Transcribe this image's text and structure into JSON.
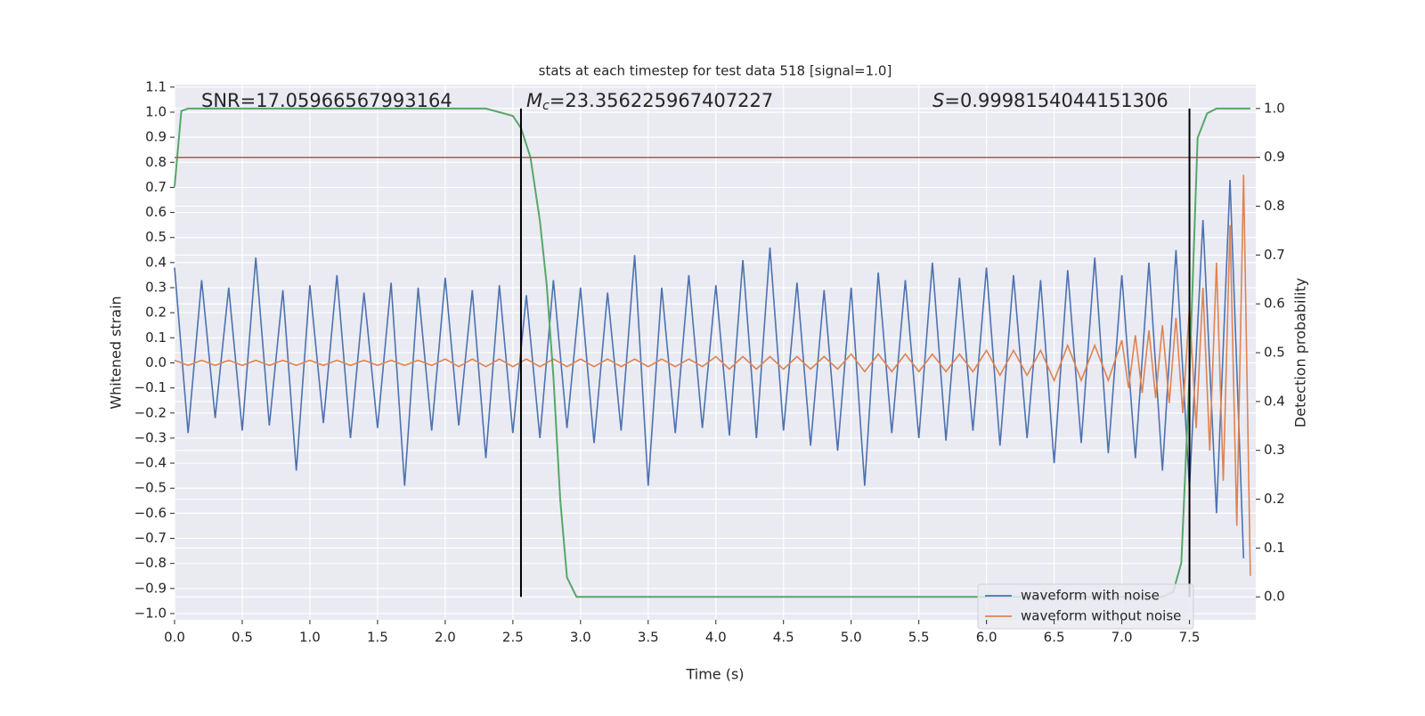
{
  "chart_data": {
    "type": "line",
    "title": "stats at each timestep for test data 518 [signal=1.0]",
    "x_label": "Time (s)",
    "y_label": "Whitened strain",
    "y2_label": "Detection probability",
    "annotations": [
      {
        "text": "SNR=17.05966567993164"
      },
      {
        "symbol": "M",
        "subscript": "c",
        "text": "=23.356225967407227"
      },
      {
        "symbol": "S",
        "text": "=0.9998154044151306"
      }
    ],
    "xlim": [
      0,
      7.99
    ],
    "ylim": [
      -1.025,
      1.11
    ],
    "y2lim": [
      -0.047,
      1.049
    ],
    "xticks": [
      {
        "value": 0,
        "label": "0.0"
      },
      0.5,
      {
        "value": 1,
        "label": "1.0"
      },
      1.5,
      {
        "value": 2,
        "label": "2.0"
      },
      2.5,
      {
        "value": 3,
        "label": "3.0"
      },
      3.5,
      {
        "value": 4,
        "label": "4.0"
      },
      4.5,
      {
        "value": 5,
        "label": "5.0"
      },
      5.5,
      {
        "value": 6,
        "label": "6.0"
      },
      6.5,
      {
        "value": 7,
        "label": "7.0"
      },
      7.5
    ],
    "yticks": [
      {
        "value": -1,
        "label": "−1.0"
      },
      {
        "value": -0.9,
        "label": "−0.9"
      },
      {
        "value": -0.8,
        "label": "−0.8"
      },
      {
        "value": -0.7,
        "label": "−0.7"
      },
      {
        "value": -0.6,
        "label": "−0.6"
      },
      {
        "value": -0.5,
        "label": "−0.5"
      },
      {
        "value": -0.4,
        "label": "−0.4"
      },
      {
        "value": -0.3,
        "label": "−0.3"
      },
      {
        "value": -0.2,
        "label": "−0.2"
      },
      {
        "value": -0.1,
        "label": "−0.1"
      },
      {
        "value": 0,
        "label": "0.0"
      },
      0.1,
      0.2,
      0.3,
      0.4,
      0.5,
      0.6,
      0.7,
      0.8,
      0.9,
      {
        "value": 1,
        "label": "1.0"
      },
      1.1
    ],
    "y2ticks": [
      {
        "value": 0,
        "label": "0.0"
      },
      0.1,
      0.2,
      0.3,
      0.4,
      0.5,
      0.6,
      0.7,
      0.8,
      0.9,
      {
        "value": 1,
        "label": "1.0"
      }
    ],
    "grid": true,
    "series": [
      {
        "name": "waveform with noise",
        "color": "#4c72b0",
        "x": [
          0,
          0.1,
          0.2,
          0.3,
          0.4,
          0.5,
          0.6,
          0.7,
          0.8,
          0.9,
          1,
          1.1,
          1.2,
          1.3,
          1.4,
          1.5,
          1.6,
          1.7,
          1.8,
          1.9,
          2,
          2.1,
          2.2,
          2.3,
          2.4,
          2.5,
          2.6,
          2.7,
          2.8,
          2.9,
          3,
          3.1,
          3.2,
          3.3,
          3.4,
          3.5,
          3.6,
          3.7,
          3.8,
          3.9,
          4,
          4.1,
          4.2,
          4.3,
          4.4,
          4.5,
          4.6,
          4.7,
          4.8,
          4.9,
          5,
          5.1,
          5.2,
          5.3,
          5.4,
          5.5,
          5.6,
          5.7,
          5.8,
          5.9,
          6,
          6.1,
          6.2,
          6.3,
          6.4,
          6.5,
          6.6,
          6.7,
          6.8,
          6.9,
          7,
          7.1,
          7.2,
          7.3,
          7.4,
          7.5,
          7.6,
          7.7,
          7.8,
          7.9
        ],
        "values": [
          0.38,
          -0.28,
          0.33,
          -0.22,
          0.3,
          -0.27,
          0.42,
          -0.25,
          0.29,
          -0.43,
          0.31,
          -0.24,
          0.35,
          -0.3,
          0.28,
          -0.26,
          0.32,
          -0.49,
          0.3,
          -0.27,
          0.34,
          -0.25,
          0.29,
          -0.38,
          0.31,
          -0.28,
          0.27,
          -0.3,
          0.33,
          -0.26,
          0.3,
          -0.32,
          0.28,
          -0.27,
          0.43,
          -0.49,
          0.3,
          -0.28,
          0.35,
          -0.26,
          0.31,
          -0.29,
          0.41,
          -0.3,
          0.46,
          -0.27,
          0.32,
          -0.33,
          0.29,
          -0.35,
          0.3,
          -0.49,
          0.36,
          -0.28,
          0.33,
          -0.3,
          0.4,
          -0.31,
          0.34,
          -0.27,
          0.38,
          -0.33,
          0.35,
          -0.3,
          0.33,
          -0.4,
          0.37,
          -0.32,
          0.42,
          -0.36,
          0.35,
          -0.38,
          0.4,
          -0.43,
          0.45,
          -0.5,
          0.57,
          -0.6,
          0.73,
          -0.78
        ]
      },
      {
        "name": "waveform without noise",
        "color": "#dd8452",
        "x": [
          0,
          0.1,
          0.2,
          0.3,
          0.4,
          0.5,
          0.6,
          0.7,
          0.8,
          0.9,
          1,
          1.1,
          1.2,
          1.3,
          1.4,
          1.5,
          1.6,
          1.7,
          1.8,
          1.9,
          2,
          2.1,
          2.2,
          2.3,
          2.4,
          2.5,
          2.6,
          2.7,
          2.8,
          2.9,
          3,
          3.1,
          3.2,
          3.3,
          3.4,
          3.5,
          3.6,
          3.7,
          3.8,
          3.9,
          4,
          4.1,
          4.2,
          4.3,
          4.4,
          4.5,
          4.6,
          4.7,
          4.8,
          4.9,
          5,
          5.1,
          5.2,
          5.3,
          5.4,
          5.5,
          5.6,
          5.7,
          5.8,
          5.9,
          6,
          6.1,
          6.2,
          6.3,
          6.4,
          6.5,
          6.6,
          6.7,
          6.8,
          6.9,
          7,
          7.05,
          7.1,
          7.15,
          7.2,
          7.25,
          7.3,
          7.35,
          7.4,
          7.45,
          7.5,
          7.55,
          7.6,
          7.65,
          7.7,
          7.75,
          7.8,
          7.85,
          7.9,
          7.95
        ],
        "values": [
          0.01,
          -0.01,
          0.01,
          -0.01,
          0.01,
          -0.01,
          0.01,
          -0.01,
          0.01,
          -0.01,
          0.01,
          -0.01,
          0.01,
          -0.01,
          0.01,
          -0.01,
          0.01,
          -0.01,
          0.01,
          -0.01,
          0.015,
          -0.015,
          0.015,
          -0.015,
          0.015,
          -0.015,
          0.015,
          -0.015,
          0.015,
          -0.015,
          0.015,
          -0.015,
          0.015,
          -0.015,
          0.015,
          -0.015,
          0.015,
          -0.015,
          0.015,
          -0.015,
          0.025,
          -0.025,
          0.025,
          -0.025,
          0.025,
          -0.025,
          0.025,
          -0.025,
          0.025,
          -0.025,
          0.035,
          -0.035,
          0.035,
          -0.035,
          0.035,
          -0.035,
          0.035,
          -0.035,
          0.035,
          -0.035,
          0.05,
          -0.05,
          0.05,
          -0.05,
          0.05,
          -0.07,
          0.07,
          -0.07,
          0.07,
          -0.07,
          0.09,
          -0.1,
          0.11,
          -0.12,
          0.13,
          -0.14,
          0.15,
          -0.16,
          0.18,
          -0.2,
          0.22,
          -0.26,
          0.3,
          -0.35,
          0.4,
          -0.47,
          0.55,
          -0.65,
          0.75,
          -0.85
        ]
      },
      {
        "color": "#55a868",
        "axis": "y2",
        "x": [
          0,
          0.05,
          0.1,
          0.5,
          1,
          1.5,
          2,
          2.3,
          2.5,
          2.56,
          2.63,
          2.7,
          2.75,
          2.8,
          2.85,
          2.9,
          2.97,
          3.5,
          4,
          5,
          6,
          7,
          7.3,
          7.38,
          7.44,
          7.5,
          7.56,
          7.63,
          7.7,
          7.95
        ],
        "values": [
          0.84,
          0.995,
          1,
          1,
          1,
          1,
          1,
          1,
          0.985,
          0.96,
          0.9,
          0.77,
          0.64,
          0.45,
          0.2,
          0.04,
          0,
          0,
          0,
          0,
          0,
          0,
          0,
          0.01,
          0.07,
          0.45,
          0.94,
          0.99,
          1,
          1
        ]
      }
    ],
    "hlines": [
      {
        "value": 0.9,
        "axis": "y2",
        "color": "#c44e52"
      }
    ],
    "vlines": [
      2.56,
      7.5
    ],
    "legend": "lower right"
  }
}
